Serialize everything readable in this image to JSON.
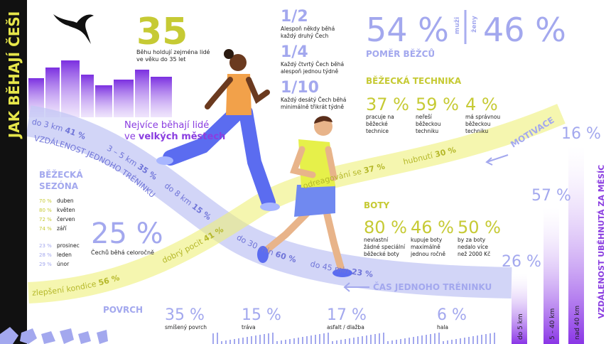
{
  "sidebar_title": "JAK BĚHAJÍ ČEŠI",
  "age": {
    "value": "35",
    "text": [
      "Běhu holdují zejména lidé",
      "ve věku do 35 let"
    ]
  },
  "frequency": [
    {
      "fraction": "1/2",
      "text": [
        "Alespoň někdy běhá",
        "každý druhý Čech"
      ]
    },
    {
      "fraction": "1/4",
      "text": [
        "Každý čtvrtý Čech běhá",
        "alespoň jednou týdně"
      ]
    },
    {
      "fraction": "1/10",
      "text": [
        "Každý desátý Čech běhá",
        "minimálně třikrát týdně"
      ]
    }
  ],
  "ratio": {
    "men_value": "54 %",
    "men": "muži",
    "women": "ženy",
    "women_value": "46 %",
    "title": "POMĚR BĚŽCŮ"
  },
  "cities": {
    "line1": "Nejvíce běhají lidé",
    "prefix": "ve",
    "highlight": "velkých městech"
  },
  "technique": {
    "title": "BĚŽECKÁ TECHNIKA",
    "items": [
      {
        "value": "37 %",
        "text": [
          "pracuje na",
          "běžecké",
          "technice"
        ]
      },
      {
        "value": "59 %",
        "text": [
          "neřeší",
          "běžeckou",
          "techniku"
        ]
      },
      {
        "value": "4 %",
        "text": [
          "má správnou",
          "běžeckou",
          "techniku"
        ]
      }
    ]
  },
  "distance": {
    "title": "VZDÁLENOST JEDNOHO TRÉNINKU",
    "items": [
      {
        "label": "do 3 km",
        "value": "41 %"
      },
      {
        "label": "3 – 5 km",
        "value": "35 %"
      },
      {
        "label": "do 8 km",
        "value": "15 %"
      }
    ]
  },
  "time": {
    "title": "ČAS JEDNOHO TRÉNINKU",
    "items": [
      {
        "label": "do 30 min",
        "value": "60 %"
      },
      {
        "label": "do 45 min",
        "value": "23 %"
      }
    ]
  },
  "motivation": {
    "title": "MOTIVACE",
    "items": [
      {
        "label": "zlepšení kondice",
        "value": "56 %"
      },
      {
        "label": "dobrý pocit",
        "value": "41 %"
      },
      {
        "label": "odreagování se",
        "value": "37 %"
      },
      {
        "label": "hubnutí",
        "value": "30 %"
      }
    ]
  },
  "season": {
    "title": [
      "BĚŽECKÁ",
      "SEZÓNA"
    ],
    "months": [
      {
        "value": "70 %",
        "month": "duben"
      },
      {
        "value": "80 %",
        "month": "květen"
      },
      {
        "value": "72 %",
        "month": "červen"
      },
      {
        "value": "74 %",
        "month": "září"
      },
      {
        "value": "23 %",
        "month": "prosinec"
      },
      {
        "value": "28 %",
        "month": "leden"
      },
      {
        "value": "29 %",
        "month": "únor"
      }
    ]
  },
  "year_round": {
    "value": "25 %",
    "text": "Čechů běhá celoročně"
  },
  "shoes": {
    "title": "BOTY",
    "items": [
      {
        "value": "80 %",
        "text": [
          "nevlastní",
          "žádné speciální",
          "běžecké boty"
        ]
      },
      {
        "value": "46 %",
        "text": [
          "kupuje boty",
          "maximálně",
          "jednou ročně"
        ]
      },
      {
        "value": "50 %",
        "text": [
          "by za boty",
          "nedalo více",
          "než 2000 Kč"
        ]
      }
    ]
  },
  "surface": {
    "title": "POVRCH",
    "items": [
      {
        "value": "35 %",
        "label": "smíšený povrch"
      },
      {
        "value": "15 %",
        "label": "tráva"
      },
      {
        "value": "17 %",
        "label": "asfalt / dlažba"
      },
      {
        "value": "6 %",
        "label": "hala"
      }
    ]
  },
  "monthly_distance": {
    "title": "VZDÁLENOST UBĚHNUTÁ ZA MĚSÍC",
    "items": [
      {
        "value": "26 %",
        "label": "do 5 km"
      },
      {
        "value": "57 %",
        "label": "5 – 40 km"
      },
      {
        "value": "16 %",
        "label": "nad 40 km"
      }
    ]
  }
}
